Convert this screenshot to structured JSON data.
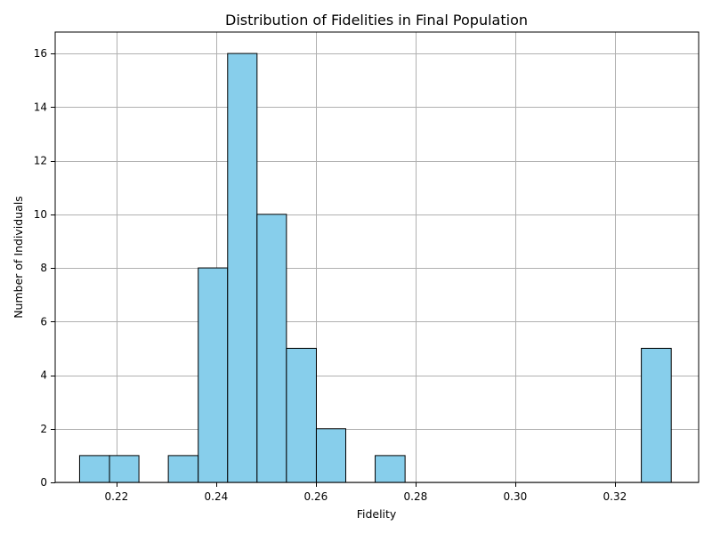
{
  "chart_data": {
    "type": "bar",
    "title": "Distribution of Fidelities in Final Population",
    "xlabel": "Fidelity",
    "ylabel": "Number of Individuals",
    "xlim": [
      0.2077,
      0.3368
    ],
    "ylim": [
      0,
      16.8
    ],
    "x_ticks": [
      0.22,
      0.24,
      0.26,
      0.28,
      0.3,
      0.32
    ],
    "x_tick_labels": [
      "0.22",
      "0.24",
      "0.26",
      "0.28",
      "0.30",
      "0.32"
    ],
    "y_ticks": [
      0,
      2,
      4,
      6,
      8,
      10,
      12,
      14,
      16
    ],
    "y_tick_labels": [
      "0",
      "2",
      "4",
      "6",
      "8",
      "10",
      "12",
      "14",
      "16"
    ],
    "grid": true,
    "bar_color": "#87ceeb",
    "edge_color": "#000000",
    "bins": [
      {
        "x_start": 0.2126,
        "x_end": 0.2186,
        "count": 1
      },
      {
        "x_start": 0.2186,
        "x_end": 0.2245,
        "count": 1
      },
      {
        "x_start": 0.2245,
        "x_end": 0.2304,
        "count": 0
      },
      {
        "x_start": 0.2304,
        "x_end": 0.2364,
        "count": 1
      },
      {
        "x_start": 0.2364,
        "x_end": 0.2423,
        "count": 8
      },
      {
        "x_start": 0.2423,
        "x_end": 0.2482,
        "count": 16
      },
      {
        "x_start": 0.2482,
        "x_end": 0.2541,
        "count": 10
      },
      {
        "x_start": 0.2541,
        "x_end": 0.2601,
        "count": 5
      },
      {
        "x_start": 0.2601,
        "x_end": 0.266,
        "count": 2
      },
      {
        "x_start": 0.266,
        "x_end": 0.2719,
        "count": 0
      },
      {
        "x_start": 0.2719,
        "x_end": 0.2779,
        "count": 1
      },
      {
        "x_start": 0.2779,
        "x_end": 0.2838,
        "count": 0
      },
      {
        "x_start": 0.2838,
        "x_end": 0.2897,
        "count": 0
      },
      {
        "x_start": 0.2897,
        "x_end": 0.2957,
        "count": 0
      },
      {
        "x_start": 0.2957,
        "x_end": 0.3016,
        "count": 0
      },
      {
        "x_start": 0.3016,
        "x_end": 0.3075,
        "count": 0
      },
      {
        "x_start": 0.3075,
        "x_end": 0.3135,
        "count": 0
      },
      {
        "x_start": 0.3135,
        "x_end": 0.3194,
        "count": 0
      },
      {
        "x_start": 0.3194,
        "x_end": 0.3253,
        "count": 0
      },
      {
        "x_start": 0.3253,
        "x_end": 0.3313,
        "count": 5
      }
    ]
  }
}
